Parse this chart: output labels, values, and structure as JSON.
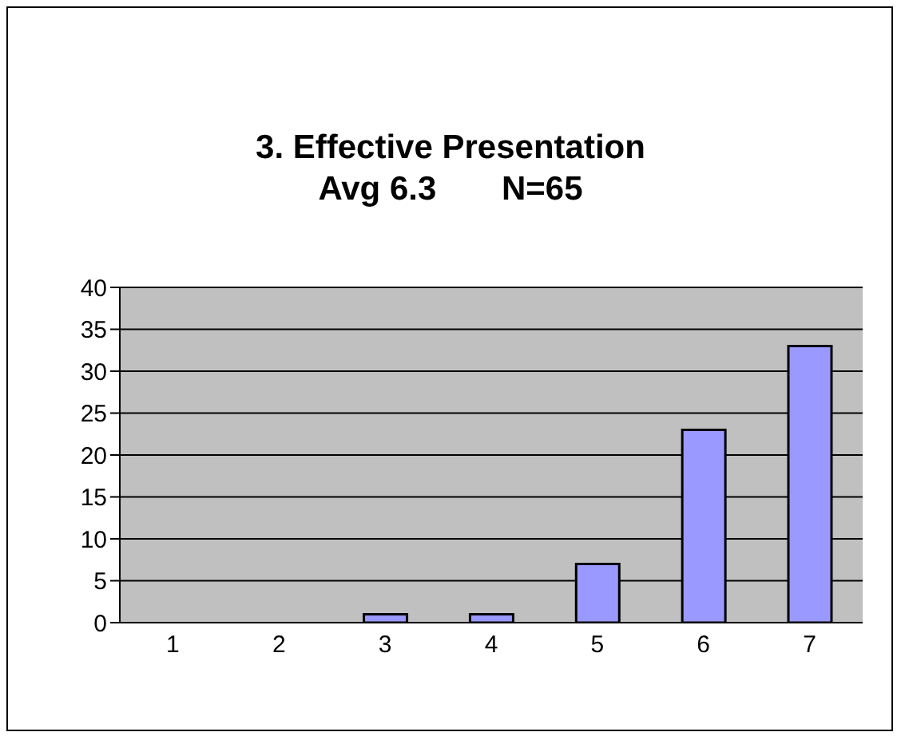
{
  "chart_data": {
    "type": "bar",
    "title": "3. Effective Presentation",
    "subtitle": "Avg 6.3       N=65",
    "categories": [
      "1",
      "2",
      "3",
      "4",
      "5",
      "6",
      "7"
    ],
    "values": [
      0,
      0,
      1,
      1,
      7,
      23,
      33
    ],
    "color": "#9999ff",
    "ylim": [
      0,
      40
    ],
    "yticks": [
      0,
      5,
      10,
      15,
      20,
      25,
      30,
      35,
      40
    ],
    "grid": "y"
  }
}
